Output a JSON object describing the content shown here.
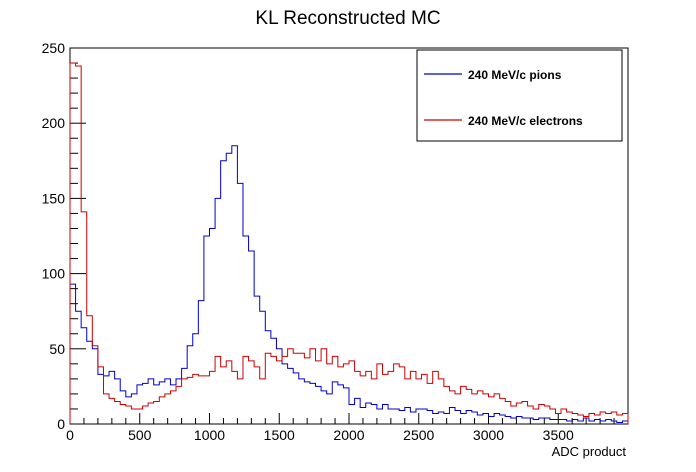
{
  "chart_data": {
    "type": "histogram",
    "title": "KL Reconstructed MC",
    "xlabel": "ADC product",
    "ylabel": "",
    "xlim": [
      0,
      4000
    ],
    "ylim": [
      0,
      250
    ],
    "x_ticks": [
      0,
      500,
      1000,
      1500,
      2000,
      2500,
      3000,
      3500
    ],
    "y_ticks": [
      0,
      50,
      100,
      150,
      200,
      250
    ],
    "grid": false,
    "legend_position": "top-right",
    "bin_width": 40,
    "series": [
      {
        "name": "240 MeV/c pions",
        "color": "#0000cc",
        "values": [
          93,
          75,
          64,
          55,
          50,
          33,
          32,
          35,
          30,
          22,
          18,
          20,
          26,
          27,
          30,
          26,
          28,
          30,
          26,
          30,
          37,
          52,
          60,
          82,
          125,
          130,
          150,
          175,
          180,
          185,
          160,
          125,
          115,
          85,
          75,
          62,
          57,
          50,
          40,
          37,
          34,
          30,
          28,
          27,
          25,
          22,
          20,
          28,
          26,
          24,
          13,
          17,
          11,
          14,
          13,
          10,
          13,
          10,
          10,
          9,
          11,
          8,
          10,
          10,
          9,
          7,
          8,
          7,
          11,
          9,
          7,
          9,
          8,
          6,
          7,
          5,
          7,
          6,
          5,
          4,
          5,
          4,
          4,
          3,
          4,
          4,
          3,
          3,
          3,
          2,
          3,
          2,
          4,
          2,
          3,
          2,
          3,
          2,
          1,
          2
        ]
      },
      {
        "name": "240 MeV/c electrons",
        "color": "#cc0000",
        "values": [
          240,
          238,
          141,
          72,
          52,
          38,
          20,
          17,
          15,
          13,
          12,
          10,
          10,
          12,
          14,
          15,
          18,
          20,
          22,
          25,
          30,
          31,
          33,
          32,
          32,
          35,
          45,
          38,
          42,
          35,
          30,
          45,
          42,
          38,
          30,
          47,
          45,
          42,
          45,
          50,
          47,
          47,
          44,
          50,
          42,
          50,
          40,
          45,
          38,
          40,
          42,
          35,
          32,
          35,
          30,
          40,
          33,
          35,
          40,
          38,
          30,
          35,
          30,
          33,
          27,
          35,
          30,
          25,
          22,
          20,
          25,
          23,
          20,
          22,
          20,
          18,
          20,
          17,
          15,
          12,
          14,
          15,
          12,
          10,
          13,
          12,
          10,
          7,
          10,
          8,
          7,
          6,
          5,
          7,
          6,
          8,
          7,
          8,
          6,
          7
        ]
      }
    ]
  }
}
